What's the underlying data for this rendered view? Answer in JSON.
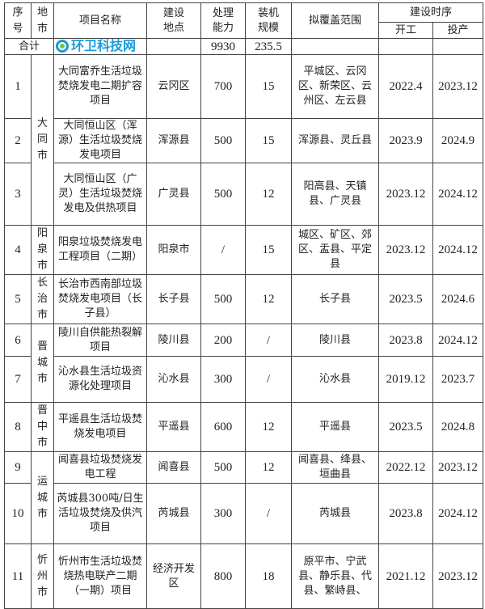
{
  "header": {
    "seq": "序号",
    "city": "地市",
    "name": "项目名称",
    "location": "建设地点",
    "capacity": "处理能力",
    "installed": "装机规模",
    "coverage": "拟覆盖范围",
    "schedule": "建设时序",
    "start": "开工",
    "operation": "投产"
  },
  "total": {
    "label": "合计",
    "capacity": "9930",
    "installed": "235.5"
  },
  "cities": [
    "大同市",
    "阳泉市",
    "长治市",
    "晋城市",
    "晋中市",
    "运城市",
    "忻州市"
  ],
  "rows": [
    {
      "seq": "1",
      "name": "大同富乔生活垃圾焚烧发电二期扩容项目",
      "location": "云冈区",
      "capacity": "700",
      "installed": "15",
      "coverage": "平城区、云冈区、新荣区、云州区、左云县",
      "start": "2022.4",
      "operation": "2023.12"
    },
    {
      "seq": "2",
      "name": "大同恒山区（浑源）生活垃圾焚烧发电项目",
      "location": "浑源县",
      "capacity": "500",
      "installed": "15",
      "coverage": "浑源县、灵丘县",
      "start": "2023.9",
      "operation": "2024.9"
    },
    {
      "seq": "3",
      "name": "大同恒山区（广灵）生活垃圾焚烧发电及供热项目",
      "location": "广灵县",
      "capacity": "500",
      "installed": "12",
      "coverage": "阳高县、天镇县、广灵县",
      "start": "2023.12",
      "operation": "2024.12"
    },
    {
      "seq": "4",
      "name": "阳泉垃圾焚烧发电工程项目（二期）",
      "location": "阳泉市",
      "capacity": "/",
      "installed": "15",
      "coverage": "城区、矿区、郊区、盂县、平定县",
      "start": "2023.12",
      "operation": "2024.12"
    },
    {
      "seq": "5",
      "name": "长治市西南部垃圾焚烧发电项目（长子县）",
      "location": "长子县",
      "capacity": "500",
      "installed": "12",
      "coverage": "长子县",
      "start": "2023.5",
      "operation": "2024.6"
    },
    {
      "seq": "6",
      "name": "陵川自供能热裂解项目",
      "location": "陵川县",
      "capacity": "200",
      "installed": "/",
      "coverage": "陵川县",
      "start": "2023.8",
      "operation": "2024.12"
    },
    {
      "seq": "7",
      "name": "沁水县生活垃圾资源化处理项目",
      "location": "沁水县",
      "capacity": "300",
      "installed": "/",
      "coverage": "沁水县",
      "start": "2019.12",
      "operation": "2023.7"
    },
    {
      "seq": "8",
      "name": "平遥县生活垃圾焚烧发电项目",
      "location": "平遥县",
      "capacity": "600",
      "installed": "12",
      "coverage": "平遥县",
      "start": "2023.5",
      "operation": "2024.8"
    },
    {
      "seq": "9",
      "name": "闻喜县垃圾焚烧发电工程",
      "location": "闻喜县",
      "capacity": "500",
      "installed": "12",
      "coverage": "闻喜县、绛县、垣曲县",
      "start": "2022.12",
      "operation": "2023.12"
    },
    {
      "seq": "10",
      "name": "芮城县300吨/日生活垃圾焚烧及供汽项目",
      "location": "芮城县",
      "capacity": "300",
      "installed": "/",
      "coverage": "芮城县",
      "start": "2023.8",
      "operation": "2024.12"
    },
    {
      "seq": "11",
      "name": "忻州市生活垃圾焚烧热电联产二期（一期）项目",
      "location": "经济开发区",
      "capacity": "800",
      "installed": "18",
      "coverage": "原平市、宁武县、静乐县、代县、繁峙县、",
      "start": "2021.12",
      "operation": "2023.12"
    }
  ],
  "watermark": "环卫科技网"
}
